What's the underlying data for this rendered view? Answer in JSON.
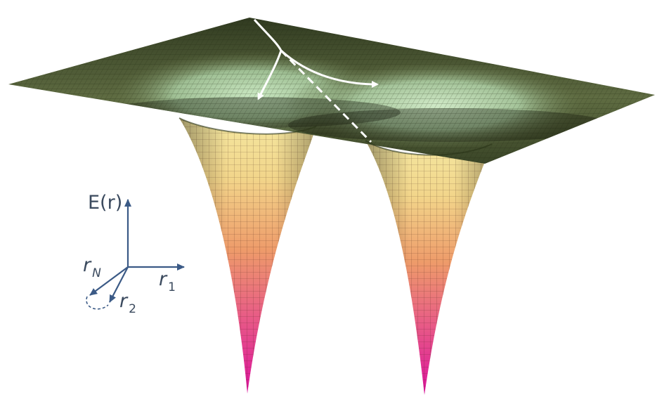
{
  "axes": {
    "energy_label": "E(r)",
    "r1_label": "r",
    "r1_sub": "1",
    "r2_label": "r",
    "r2_sub": "2",
    "rN_label": "r",
    "rN_sub": "N"
  },
  "colors": {
    "plateau": "#3a4527",
    "plateau_light": "#9fbf94",
    "well_top": "#f2e08f",
    "well_mid": "#ee9b6a",
    "well_bottom": "#e0189a",
    "axis": "#3b5a86",
    "path_arrows": "#ffffff"
  }
}
